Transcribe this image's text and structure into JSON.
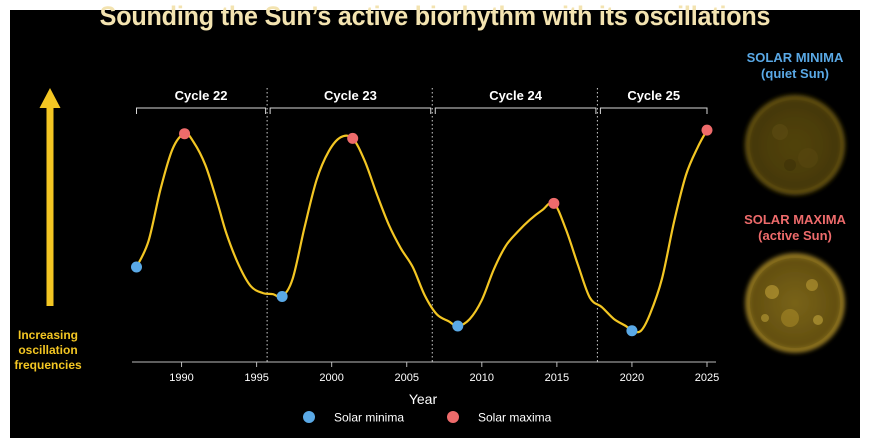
{
  "title": "Sounding the Sun’s active biorhythm with its oscillations",
  "left_label": [
    "Increasing",
    "oscillation",
    "frequencies"
  ],
  "sun_panel": {
    "minima_title": "SOLAR MINIMA",
    "minima_subtitle": "(quiet Sun)",
    "maxima_title": "SOLAR MAXIMA",
    "maxima_subtitle": "(active Sun)"
  },
  "colors": {
    "background": "#000000",
    "curve": "#f3c623",
    "minima": "#5aa9e6",
    "maxima": "#ee6b6b",
    "title": "#f3e3b0",
    "arrow": "#f3c623"
  },
  "chart_data": {
    "type": "line",
    "xlabel": "Year",
    "ylabel": "",
    "xlim": [
      1986.7,
      2025.6
    ],
    "ylim": [
      0,
      1
    ],
    "x_ticks": [
      1990,
      1995,
      2000,
      2005,
      2010,
      2015,
      2020,
      2025
    ],
    "y_axis_shown": false,
    "grid": false,
    "cycle_boundaries": [
      1995.7,
      2006.7,
      2017.7
    ],
    "cycles": [
      {
        "label": "Cycle 22",
        "start": 1987.0,
        "end": 1995.6
      },
      {
        "label": "Cycle 23",
        "start": 1995.9,
        "end": 2006.6
      },
      {
        "label": "Cycle 24",
        "start": 2006.9,
        "end": 2017.6
      },
      {
        "label": "Cycle 25",
        "start": 2017.9,
        "end": 2025.0
      }
    ],
    "series": [
      {
        "name": "",
        "x": [
          1987.0,
          1987.8,
          1988.6,
          1989.4,
          1990.2,
          1990.8,
          1991.6,
          1992.4,
          1993.0,
          1993.8,
          1994.6,
          1995.4,
          1996.1,
          1996.7,
          1997.4,
          1998.2,
          1999.0,
          1999.8,
          2000.6,
          2001.4,
          2002.2,
          2003.0,
          2003.8,
          2004.6,
          2005.4,
          2006.2,
          2007.0,
          2007.8,
          2008.4,
          2009.2,
          2010.0,
          2010.8,
          2011.6,
          2012.4,
          2013.2,
          2014.0,
          2014.8,
          2015.6,
          2016.4,
          2017.2,
          2018.0,
          2018.8,
          2019.6,
          2020.0,
          2020.6,
          2021.2,
          2022.0,
          2022.8,
          2023.6,
          2024.4,
          2025.0
        ],
        "y": [
          0.36,
          0.47,
          0.69,
          0.86,
          0.925,
          0.89,
          0.79,
          0.63,
          0.5,
          0.37,
          0.28,
          0.25,
          0.245,
          0.235,
          0.31,
          0.53,
          0.73,
          0.85,
          0.91,
          0.905,
          0.81,
          0.67,
          0.54,
          0.44,
          0.36,
          0.24,
          0.16,
          0.13,
          0.11,
          0.14,
          0.22,
          0.35,
          0.45,
          0.51,
          0.56,
          0.6,
          0.63,
          0.52,
          0.37,
          0.23,
          0.19,
          0.14,
          0.11,
          0.09,
          0.09,
          0.16,
          0.31,
          0.55,
          0.75,
          0.87,
          0.94
        ]
      }
    ],
    "minima": [
      {
        "x": 1987.0,
        "y": 0.36
      },
      {
        "x": 1996.7,
        "y": 0.235
      },
      {
        "x": 2008.4,
        "y": 0.11
      },
      {
        "x": 2020.0,
        "y": 0.09
      }
    ],
    "maxima": [
      {
        "x": 1990.2,
        "y": 0.925
      },
      {
        "x": 2001.4,
        "y": 0.905
      },
      {
        "x": 2014.8,
        "y": 0.63
      },
      {
        "x": 2025.0,
        "y": 0.94
      }
    ],
    "legend": {
      "placement": "bottom-center",
      "entries": [
        {
          "label": "Solar minima",
          "color": "#5aa9e6"
        },
        {
          "label": "Solar maxima",
          "color": "#ee6b6b"
        }
      ]
    }
  }
}
